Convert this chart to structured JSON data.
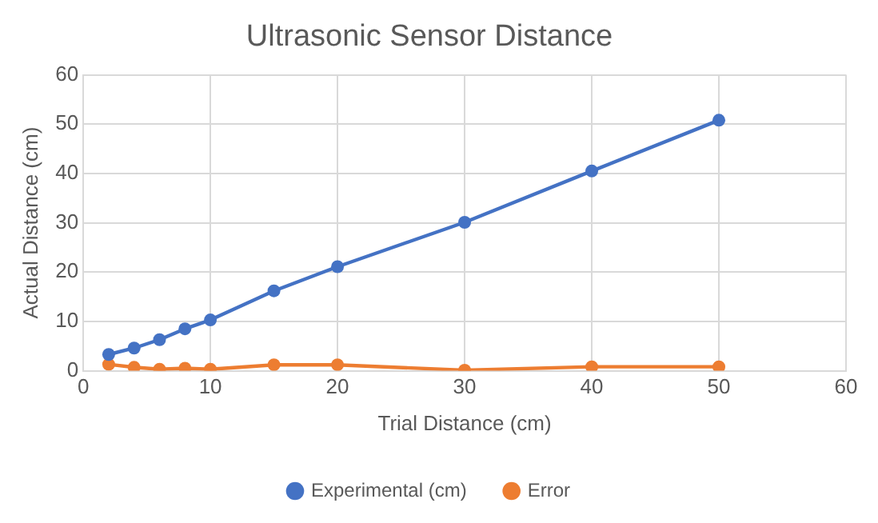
{
  "chart_data": {
    "type": "line",
    "title": "Ultrasonic Sensor Distance",
    "xlabel": "Trial Distance (cm)",
    "ylabel": "Actual Distance (cm)",
    "x": [
      2,
      4,
      6,
      8,
      10,
      15,
      20,
      30,
      40,
      50
    ],
    "series": [
      {
        "name": "Experimental (cm)",
        "color": "#4472c4",
        "values": [
          3.3,
          4.6,
          6.3,
          8.5,
          10.3,
          16.2,
          21.1,
          30.1,
          40.5,
          50.8
        ]
      },
      {
        "name": "Error",
        "color": "#ed7d31",
        "values": [
          1.3,
          0.7,
          0.3,
          0.5,
          0.3,
          1.2,
          1.2,
          0.1,
          0.8,
          0.8
        ]
      }
    ],
    "xlim": [
      0,
      60
    ],
    "xticks": [
      0,
      10,
      20,
      30,
      40,
      50,
      60
    ],
    "ylim": [
      0,
      60
    ],
    "yticks": [
      0,
      10,
      20,
      30,
      40,
      50,
      60
    ],
    "grid": true,
    "legend": "bottom",
    "marker": "circle",
    "line_style": "solid"
  }
}
